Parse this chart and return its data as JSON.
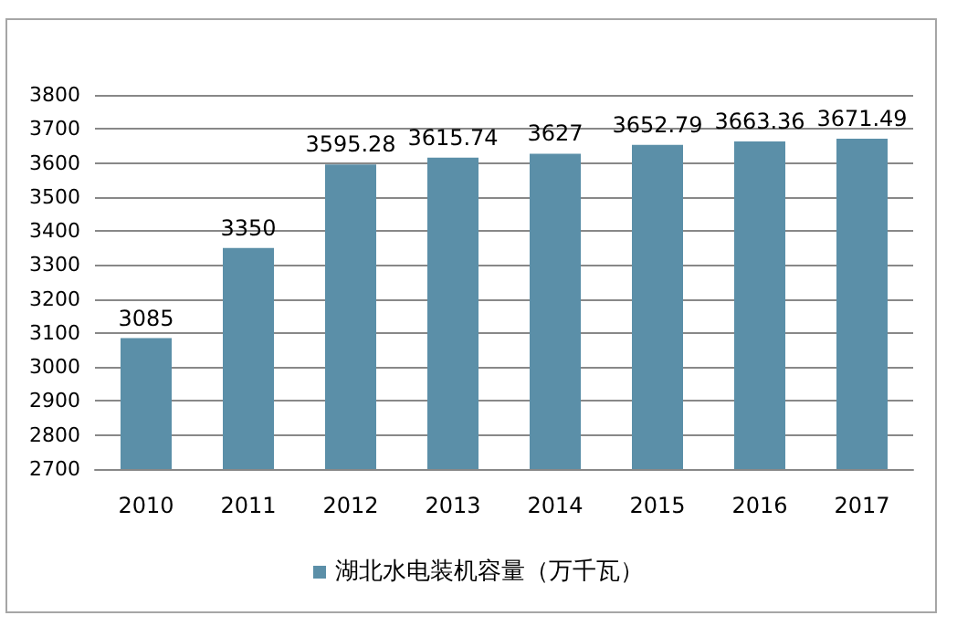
{
  "chart_data": {
    "type": "bar",
    "categories": [
      "2010",
      "2011",
      "2012",
      "2013",
      "2014",
      "2015",
      "2016",
      "2017"
    ],
    "series": [
      {
        "name": "湖北水电装机容量（万千瓦）",
        "color": "#5b8fa8",
        "values": [
          3085,
          3350,
          3595.28,
          3615.74,
          3627,
          3652.79,
          3663.36,
          3671.49
        ]
      }
    ],
    "ylim": [
      2700,
      3800
    ],
    "yticks": [
      2700,
      2800,
      2900,
      3000,
      3100,
      3200,
      3300,
      3400,
      3500,
      3600,
      3700,
      3800
    ],
    "grid": "y",
    "legend": "bottom",
    "data_labels": true
  }
}
